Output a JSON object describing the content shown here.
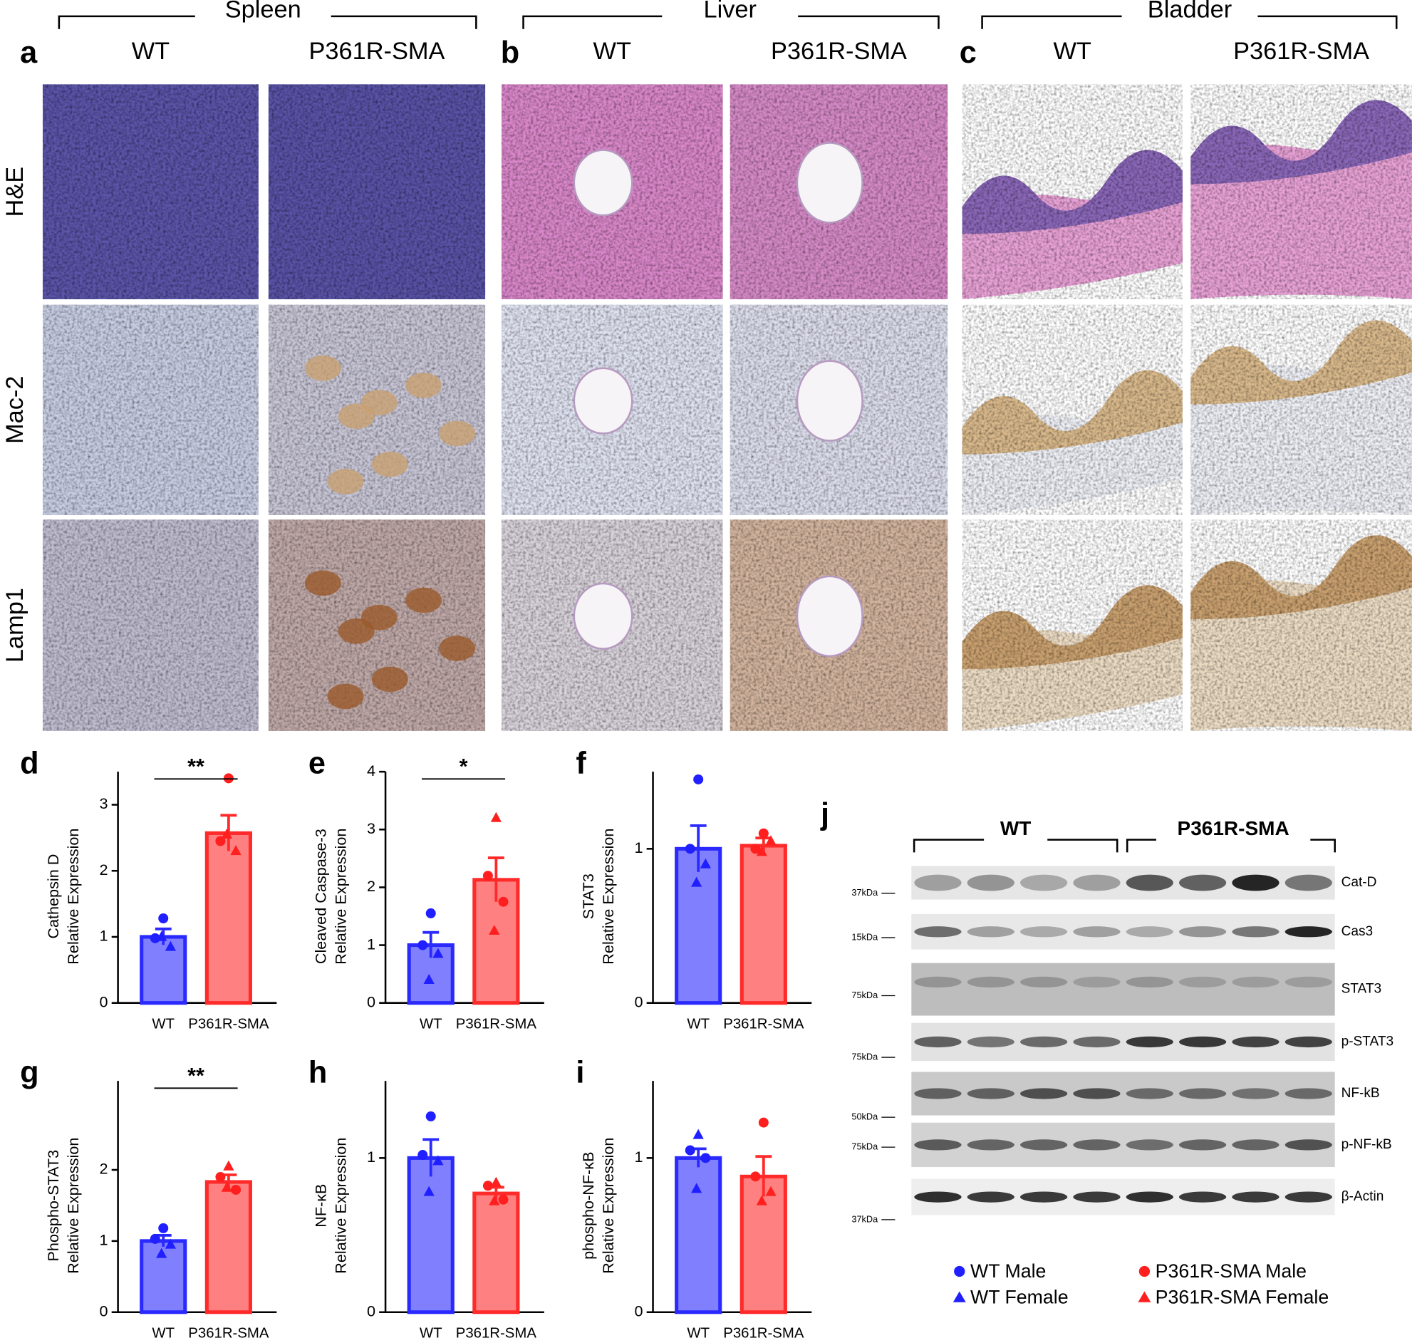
{
  "headers": {
    "groups": [
      "Spleen",
      "Liver",
      "Bladder"
    ],
    "columns": [
      "WT",
      "P361R-SMA"
    ],
    "rows": [
      "H&E",
      "Mac-2",
      "Lamp1"
    ],
    "panels": [
      "a",
      "b",
      "c"
    ]
  },
  "chart_data": [
    {
      "type": "bar",
      "panel": "d",
      "ylabel": [
        "Cathepsin D",
        "Relative Expression"
      ],
      "categories": [
        "WT",
        "P361R-SMA"
      ],
      "values": [
        1.0,
        2.57
      ],
      "errors": [
        0.12,
        0.27
      ],
      "colors": [
        "#8080ff",
        "#ff8080"
      ],
      "edge_colors": [
        "#2a2aff",
        "#ff2a2a"
      ],
      "point_colors": [
        "#1f1fff",
        "#ff1f1f"
      ],
      "points": [
        [
          1.28,
          0.98,
          0.85,
          1.0
        ],
        [
          3.4,
          2.45,
          2.3,
          2.55
        ]
      ],
      "markers": [
        [
          "circle",
          "circle",
          "triangle",
          "triangle"
        ],
        [
          "circle",
          "circle",
          "triangle",
          "triangle"
        ]
      ],
      "significance": "**",
      "ylim": [
        0,
        3.5
      ],
      "yticks": [
        0,
        1,
        2,
        3
      ]
    },
    {
      "type": "bar",
      "panel": "e",
      "ylabel": [
        "Cleaved Caspase-3",
        "Relative Expression"
      ],
      "categories": [
        "WT",
        "P361R-SMA"
      ],
      "values": [
        1.0,
        2.13
      ],
      "errors": [
        0.22,
        0.38
      ],
      "colors": [
        "#8080ff",
        "#ff8080"
      ],
      "edge_colors": [
        "#2a2aff",
        "#ff2a2a"
      ],
      "point_colors": [
        "#1f1fff",
        "#ff1f1f"
      ],
      "points": [
        [
          1.55,
          1.0,
          0.85,
          0.4
        ],
        [
          3.2,
          2.2,
          1.75,
          1.25
        ]
      ],
      "markers": [
        [
          "circle",
          "circle",
          "triangle",
          "triangle"
        ],
        [
          "triangle",
          "circle",
          "circle",
          "triangle"
        ]
      ],
      "significance": "*",
      "ylim": [
        0,
        4
      ],
      "yticks": [
        0,
        1,
        2,
        3,
        4
      ]
    },
    {
      "type": "bar",
      "panel": "f",
      "ylabel": [
        "STAT3",
        "Relative Expression"
      ],
      "categories": [
        "WT",
        "P361R-SMA"
      ],
      "values": [
        1.0,
        1.02
      ],
      "errors": [
        0.15,
        0.05
      ],
      "colors": [
        "#8080ff",
        "#ff8080"
      ],
      "edge_colors": [
        "#2a2aff",
        "#ff2a2a"
      ],
      "point_colors": [
        "#1f1fff",
        "#ff1f1f"
      ],
      "points": [
        [
          1.45,
          1.0,
          0.9,
          0.78
        ],
        [
          1.1,
          1.0,
          1.05,
          0.98
        ]
      ],
      "markers": [
        [
          "circle",
          "circle",
          "triangle",
          "triangle"
        ],
        [
          "circle",
          "circle",
          "triangle",
          "triangle"
        ]
      ],
      "ylim": [
        0,
        1.5
      ],
      "yticks": [
        0,
        1
      ]
    },
    {
      "type": "bar",
      "panel": "g",
      "ylabel": [
        "Phospho-STAT3",
        "Relative Expression"
      ],
      "categories": [
        "WT",
        "P361R-SMA"
      ],
      "values": [
        1.0,
        1.83
      ],
      "errors": [
        0.08,
        0.1
      ],
      "colors": [
        "#8080ff",
        "#ff8080"
      ],
      "edge_colors": [
        "#2a2aff",
        "#ff2a2a"
      ],
      "point_colors": [
        "#1f1fff",
        "#ff1f1f"
      ],
      "points": [
        [
          1.18,
          1.03,
          0.95,
          0.82
        ],
        [
          2.05,
          1.9,
          1.72,
          1.75
        ]
      ],
      "markers": [
        [
          "circle",
          "circle",
          "triangle",
          "triangle"
        ],
        [
          "triangle",
          "circle",
          "circle",
          "triangle"
        ]
      ],
      "significance": "**",
      "ylim": [
        0,
        3.25
      ],
      "yticks": [
        0,
        1,
        2
      ]
    },
    {
      "type": "bar",
      "panel": "h",
      "ylabel": [
        "NF-κB",
        "Relative Expression"
      ],
      "categories": [
        "WT",
        "P361R-SMA"
      ],
      "values": [
        1.0,
        0.77
      ],
      "errors": [
        0.12,
        0.04
      ],
      "colors": [
        "#8080ff",
        "#ff8080"
      ],
      "edge_colors": [
        "#2a2aff",
        "#ff2a2a"
      ],
      "point_colors": [
        "#1f1fff",
        "#ff1f1f"
      ],
      "points": [
        [
          1.27,
          1.02,
          0.98,
          0.78
        ],
        [
          0.84,
          0.82,
          0.73,
          0.72
        ]
      ],
      "markers": [
        [
          "circle",
          "circle",
          "triangle",
          "triangle"
        ],
        [
          "triangle",
          "circle",
          "circle",
          "triangle"
        ]
      ],
      "ylim": [
        0,
        1.5
      ],
      "yticks": [
        0,
        1
      ]
    },
    {
      "type": "bar",
      "panel": "i",
      "ylabel": [
        "phospho-NF-κB",
        "Relative Expression"
      ],
      "categories": [
        "WT",
        "P361R-SMA"
      ],
      "values": [
        1.0,
        0.88
      ],
      "errors": [
        0.06,
        0.13
      ],
      "colors": [
        "#8080ff",
        "#ff8080"
      ],
      "edge_colors": [
        "#2a2aff",
        "#ff2a2a"
      ],
      "point_colors": [
        "#1f1fff",
        "#ff1f1f"
      ],
      "points": [
        [
          1.15,
          1.05,
          1.0,
          0.8
        ],
        [
          1.23,
          0.88,
          0.78,
          0.72
        ]
      ],
      "markers": [
        [
          "triangle",
          "circle",
          "circle",
          "triangle"
        ],
        [
          "circle",
          "circle",
          "triangle",
          "triangle"
        ]
      ],
      "ylim": [
        0,
        1.5
      ],
      "yticks": [
        0,
        1
      ]
    }
  ],
  "blot": {
    "panel": "j",
    "groups": [
      "WT",
      "P361R-SMA"
    ],
    "rows": [
      {
        "label": "Cat-D",
        "marker": "37kDa"
      },
      {
        "label": "Cas3",
        "marker": "15kDa"
      },
      {
        "label": "STAT3",
        "marker": "75kDa"
      },
      {
        "label": "p-STAT3",
        "marker": "75kDa"
      },
      {
        "label": "NF-kB",
        "marker": "50kDa"
      },
      {
        "label": "p-NF-kB",
        "marker": "75kDa"
      },
      {
        "label": "β-Actin",
        "marker": "37kDa"
      }
    ]
  },
  "legend": [
    {
      "name": "WT Male",
      "color": "#1f1fff",
      "marker": "circle"
    },
    {
      "name": "WT Female",
      "color": "#1f1fff",
      "marker": "triangle"
    },
    {
      "name": "P361R-SMA Male",
      "color": "#ff1f1f",
      "marker": "circle"
    },
    {
      "name": "P361R-SMA Female",
      "color": "#ff1f1f",
      "marker": "triangle"
    }
  ]
}
